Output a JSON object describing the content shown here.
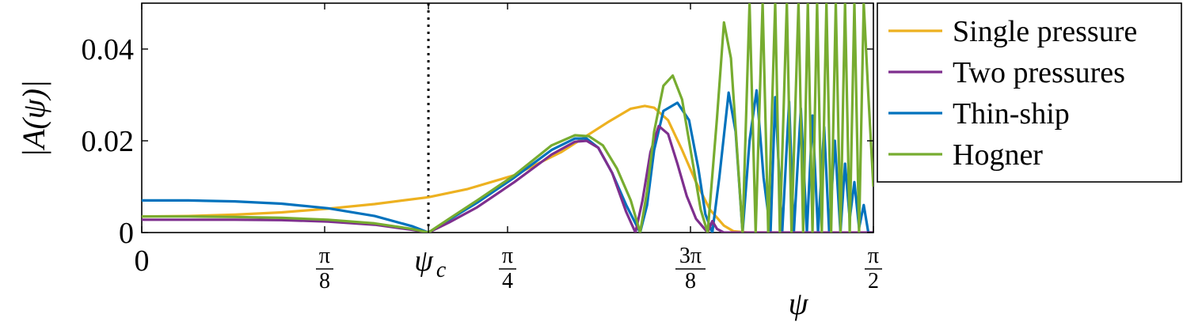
{
  "chart_data": {
    "type": "line",
    "title": "",
    "xlabel": "ψ",
    "ylabel": "|A(ψ)|",
    "xlim": [
      0,
      1.5708
    ],
    "ylim": [
      0,
      0.05
    ],
    "grid": false,
    "legend_position": "top-right-outside",
    "x_ticks": [
      {
        "value": 0,
        "label": "0"
      },
      {
        "value": 0.3927,
        "num": "π",
        "den": "8"
      },
      {
        "value": 0.6155,
        "label": "ψ",
        "sub": "c"
      },
      {
        "value": 0.7854,
        "num": "π",
        "den": "4"
      },
      {
        "value": 1.1781,
        "num": "3π",
        "den": "8"
      },
      {
        "value": 1.5708,
        "num": "π",
        "den": "2"
      }
    ],
    "y_ticks": [
      {
        "value": 0,
        "label": "0"
      },
      {
        "value": 0.02,
        "label": "0.02"
      },
      {
        "value": 0.04,
        "label": "0.04"
      }
    ],
    "vline": {
      "x": 0.6155,
      "style": "dotted"
    },
    "series": [
      {
        "name": "Single pressure",
        "color": "#EDB120",
        "x": [
          0,
          0.1,
          0.2,
          0.3,
          0.4,
          0.5,
          0.6155,
          0.7,
          0.8,
          0.9,
          1.0,
          1.05,
          1.08,
          1.1,
          1.13,
          1.16,
          1.19,
          1.22,
          1.25,
          1.27,
          1.3,
          1.35,
          1.5708
        ],
        "y": [
          0.0035,
          0.0036,
          0.0039,
          0.0044,
          0.0052,
          0.0062,
          0.0077,
          0.0095,
          0.0125,
          0.0175,
          0.024,
          0.027,
          0.0276,
          0.0272,
          0.0245,
          0.018,
          0.011,
          0.005,
          0.0015,
          0.0003,
          0,
          0,
          0
        ]
      },
      {
        "name": "Two pressures",
        "color": "#7E2F8E",
        "x": [
          0,
          0.1,
          0.2,
          0.3,
          0.4,
          0.5,
          0.58,
          0.6155,
          0.66,
          0.72,
          0.8,
          0.88,
          0.93,
          0.955,
          0.98,
          1.01,
          1.04,
          1.06,
          1.075,
          1.092,
          1.11,
          1.13,
          1.15,
          1.17,
          1.19,
          1.215,
          1.225,
          1.235,
          1.25,
          1.27,
          1.3,
          1.4,
          1.5708
        ],
        "y": [
          0.0028,
          0.0028,
          0.0028,
          0.0027,
          0.0024,
          0.0017,
          0.0006,
          0,
          0.0022,
          0.0055,
          0.011,
          0.017,
          0.0198,
          0.02,
          0.0185,
          0.013,
          0.0045,
          0,
          0.007,
          0.0175,
          0.0232,
          0.0215,
          0.015,
          0.008,
          0.003,
          0,
          0.0025,
          0.0008,
          0,
          0,
          0,
          0,
          0
        ]
      },
      {
        "name": "Thin-ship",
        "color": "#0072BD",
        "x": [
          0,
          0.1,
          0.2,
          0.3,
          0.4,
          0.5,
          0.58,
          0.6155,
          0.66,
          0.72,
          0.8,
          0.88,
          0.93,
          0.955,
          0.98,
          1.01,
          1.04,
          1.07,
          1.085,
          1.1,
          1.12,
          1.15,
          1.175,
          1.195,
          1.21,
          1.225,
          1.24,
          1.26,
          1.275,
          1.29,
          1.305,
          1.32,
          1.335,
          1.35,
          1.36,
          1.375,
          1.39,
          1.4,
          1.415,
          1.428,
          1.44,
          1.452,
          1.465,
          1.476,
          1.488,
          1.5,
          1.51,
          1.52,
          1.53,
          1.54,
          1.55,
          1.56,
          1.5708
        ],
        "y": [
          0.007,
          0.007,
          0.0068,
          0.0063,
          0.0053,
          0.0036,
          0.0014,
          0,
          0.0028,
          0.0065,
          0.012,
          0.018,
          0.0205,
          0.0205,
          0.0185,
          0.013,
          0.006,
          0,
          0.006,
          0.018,
          0.0265,
          0.0283,
          0.0245,
          0.014,
          0.004,
          0,
          0.012,
          0.0305,
          0.022,
          0,
          0.02,
          0.031,
          0.012,
          0,
          0.0295,
          0,
          0.0285,
          0,
          0.027,
          0,
          0.0255,
          0,
          0.023,
          0,
          0.02,
          0,
          0.015,
          0.003,
          0.011,
          0.001,
          0.006,
          0,
          0
        ]
      },
      {
        "name": "Hogner",
        "color": "#77AC30",
        "x": [
          0,
          0.1,
          0.2,
          0.3,
          0.4,
          0.5,
          0.58,
          0.6155,
          0.66,
          0.72,
          0.8,
          0.88,
          0.93,
          0.96,
          0.99,
          1.02,
          1.05,
          1.07,
          1.085,
          1.1,
          1.12,
          1.14,
          1.16,
          1.18,
          1.2,
          1.215,
          1.235,
          1.25,
          1.265,
          1.29,
          1.305,
          1.318,
          1.333,
          1.345,
          1.36,
          1.37,
          1.385,
          1.395,
          1.41,
          1.42,
          1.43,
          1.44,
          1.45,
          1.46,
          1.47,
          1.48,
          1.49,
          1.5,
          1.51,
          1.52,
          1.53,
          1.54,
          1.55,
          1.56,
          1.5708
        ],
        "y": [
          0.0035,
          0.0035,
          0.0034,
          0.0032,
          0.0028,
          0.002,
          0.0008,
          0,
          0.003,
          0.007,
          0.0125,
          0.019,
          0.0212,
          0.021,
          0.019,
          0.014,
          0.007,
          0,
          0.009,
          0.022,
          0.032,
          0.0342,
          0.029,
          0.017,
          0.005,
          0,
          0.025,
          0.0458,
          0.038,
          0,
          0.05,
          0,
          0.05,
          0,
          0.05,
          0,
          0.05,
          0,
          0.05,
          0,
          0.05,
          0,
          0.05,
          0,
          0.05,
          0,
          0.05,
          0,
          0.05,
          0,
          0.05,
          0,
          0.05,
          0.03,
          0.01
        ]
      }
    ]
  }
}
